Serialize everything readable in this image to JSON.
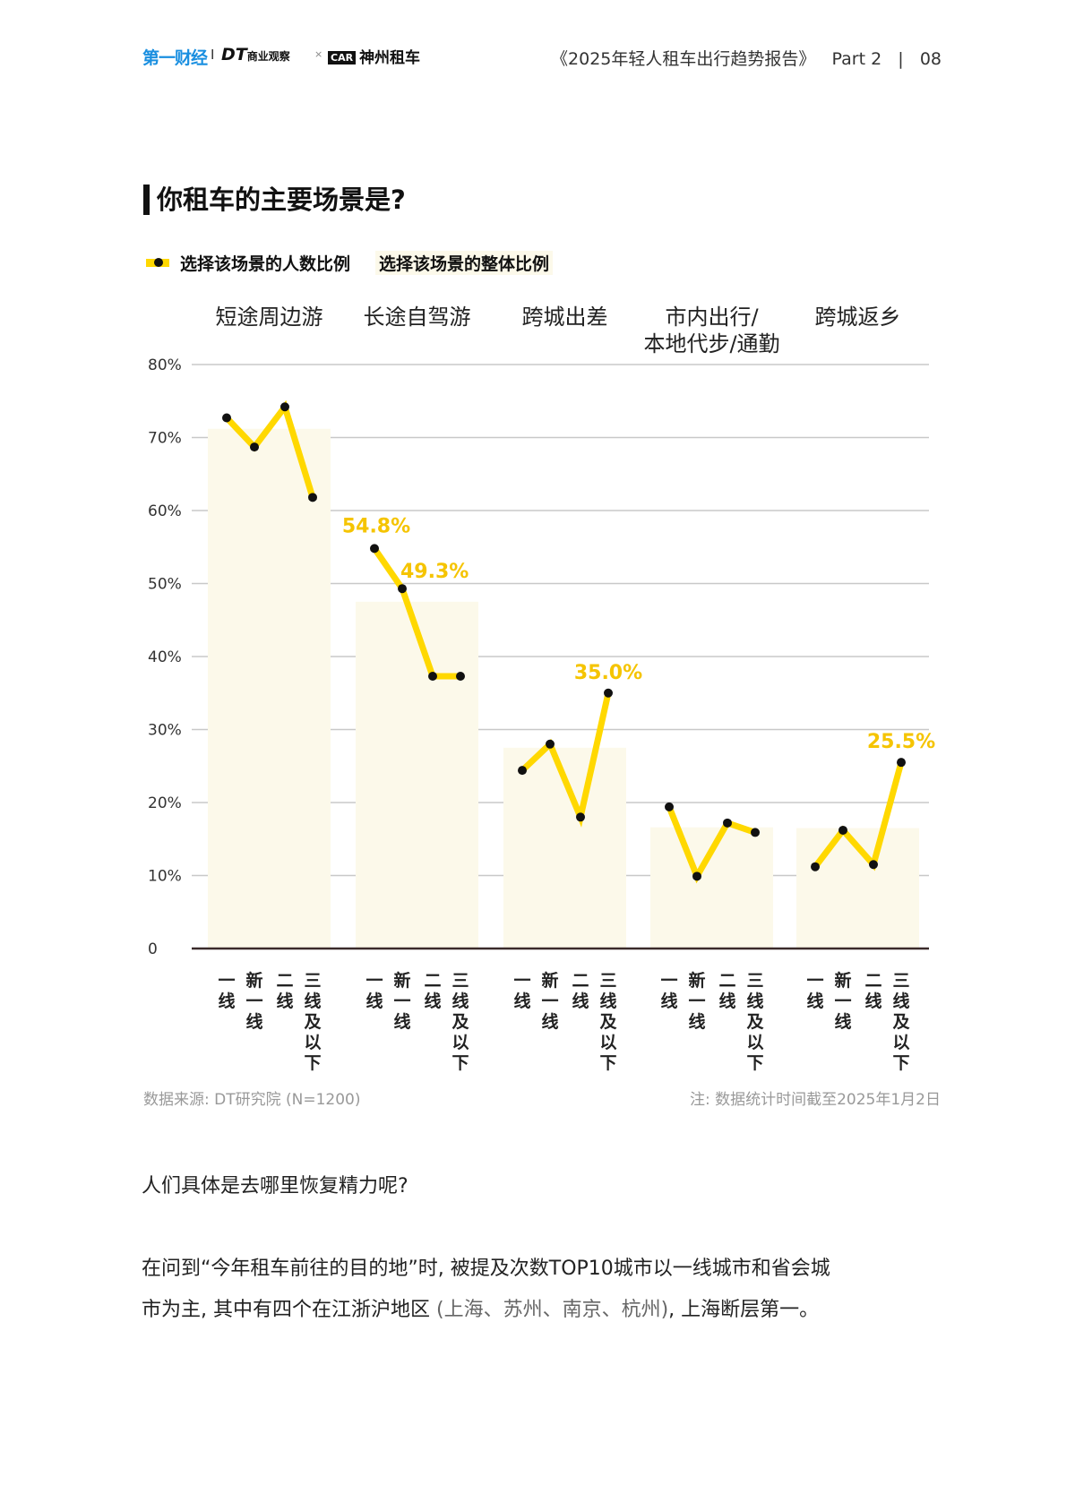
{
  "header": {
    "logo_yicai": "第一财经",
    "logo_dt": "DT",
    "logo_dt_sub": "商业观察",
    "separator": "I",
    "times": "×",
    "logo_car_badge": "CAR",
    "logo_car": "神州租车",
    "report_title": "《2025年轻人租车出行趋势报告》",
    "part": "Part 2",
    "divider": "|",
    "page": "08"
  },
  "title": "你租车的主要场景是?",
  "legend": {
    "line_label": "选择该场景的人数比例",
    "bar_label": "选择该场景的整体比例"
  },
  "colors": {
    "line": "#FFD800",
    "point": "#111111",
    "bar": "#FCF9EA",
    "data_label": "#F5C400"
  },
  "chart_data": {
    "type": "bar+line",
    "categories": [
      {
        "label_lines": [
          "短途周边游"
        ]
      },
      {
        "label_lines": [
          "长途自驾游"
        ]
      },
      {
        "label_lines": [
          "跨城出差"
        ]
      },
      {
        "label_lines": [
          "市内出行/",
          "本地代步/通勤"
        ]
      },
      {
        "label_lines": [
          "跨城返乡"
        ]
      }
    ],
    "sub_categories": [
      [
        "一",
        "线"
      ],
      [
        "新",
        "一",
        "线"
      ],
      [
        "二",
        "线"
      ],
      [
        "三",
        "线",
        "及",
        "以",
        "下"
      ]
    ],
    "bar_values": [
      71.2,
      47.5,
      27.5,
      16.6,
      16.5
    ],
    "line_values": [
      [
        72.7,
        68.7,
        74.2,
        61.8
      ],
      [
        54.8,
        49.3,
        37.3,
        37.3
      ],
      [
        24.4,
        28.0,
        18.0,
        35.0
      ],
      [
        19.4,
        9.9,
        17.2,
        15.9
      ],
      [
        11.2,
        16.2,
        11.5,
        25.5
      ]
    ],
    "data_labels": [
      {
        "group": 1,
        "index": 0,
        "text": "54.8%"
      },
      {
        "group": 1,
        "index": 1,
        "text": "49.3%"
      },
      {
        "group": 2,
        "index": 3,
        "text": "35.0%"
      },
      {
        "group": 4,
        "index": 3,
        "text": "25.5%"
      }
    ],
    "y_ticks": [
      "0",
      "10%",
      "20%",
      "30%",
      "40%",
      "50%",
      "60%",
      "70%",
      "80%"
    ],
    "ylim": [
      0,
      80
    ],
    "grid": true,
    "legend_position": "top-left"
  },
  "footer": {
    "source": "数据来源: DT研究院 (N=1200)",
    "note": "注: 数据统计时间截至2025年1月2日"
  },
  "body": {
    "question": "人们具体是去哪里恢复精力呢?",
    "para_line1": "在问到“今年租车前往的目的地”时, 被提及次数TOP10城市以一线城市和省会城",
    "para_line2_a": "市为主, 其中有四个在江浙沪地区 ",
    "para_line2_b": "(上海、苏州、南京、杭州)",
    "para_line2_c": ", 上海断层第一。"
  }
}
